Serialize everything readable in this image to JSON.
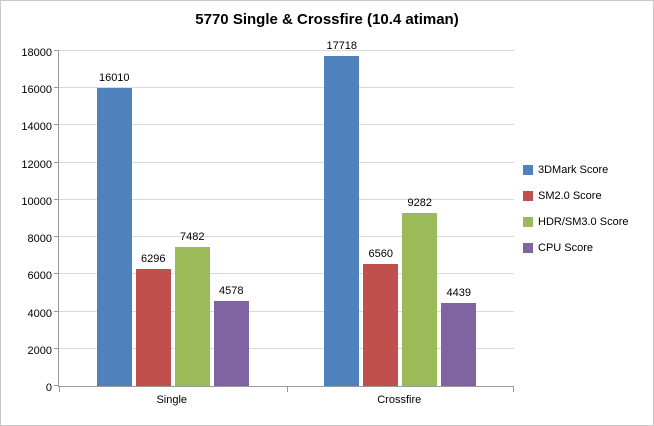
{
  "chart_data": {
    "type": "bar",
    "title": "5770 Single & Crossfire (10.4 atiman)",
    "categories": [
      "Single",
      "Crossfire"
    ],
    "series": [
      {
        "name": "3DMark Score",
        "color": "#4f81bd",
        "values": [
          16010,
          17718
        ]
      },
      {
        "name": "SM2.0 Score",
        "color": "#c0504d",
        "values": [
          6296,
          6560
        ]
      },
      {
        "name": "HDR/SM3.0 Score",
        "color": "#9bbb59",
        "values": [
          7482,
          9282
        ]
      },
      {
        "name": "CPU Score",
        "color": "#8064a2",
        "values": [
          4578,
          4439
        ]
      }
    ],
    "ylim": [
      0,
      18000
    ],
    "ytick_step": 2000,
    "yticks": [
      0,
      2000,
      4000,
      6000,
      8000,
      10000,
      12000,
      14000,
      16000,
      18000
    ],
    "grid": true,
    "legend_position": "right",
    "xlabel": "",
    "ylabel": ""
  }
}
